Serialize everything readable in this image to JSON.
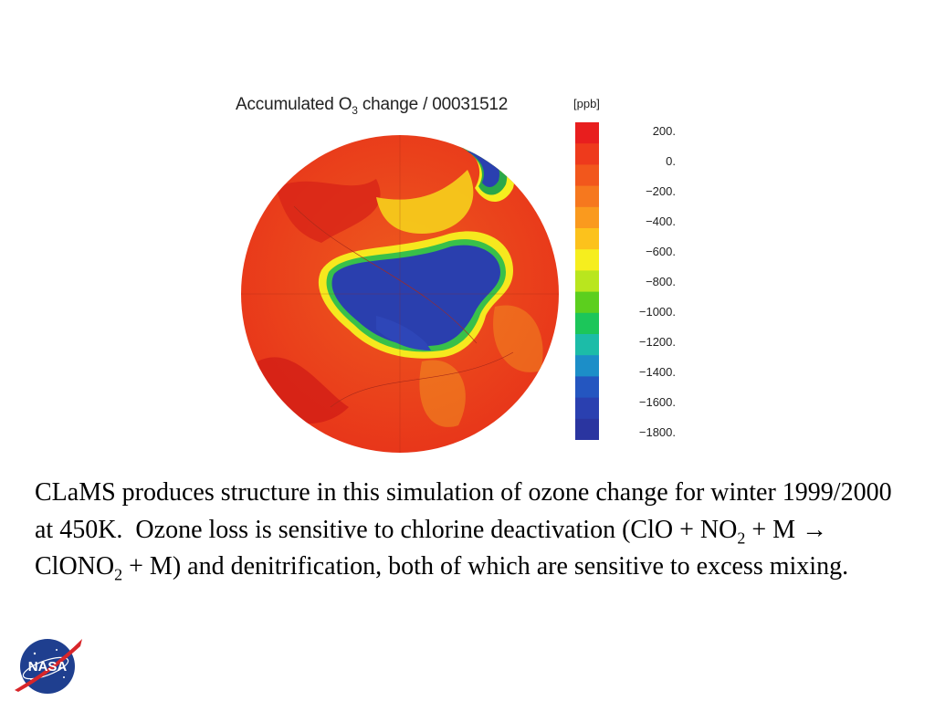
{
  "figure": {
    "title_main": "Accumulated O",
    "title_sub": "3",
    "title_rest": " change / 00031512",
    "units": "[ppb]",
    "colorbar_ticks": [
      "200.",
      "0.",
      "−200.",
      "−400.",
      "−600.",
      "−800.",
      "−1000.",
      "−1200.",
      "−1400.",
      "−1600.",
      "−1800."
    ],
    "colorbar_colors": [
      "#e81e1e",
      "#ee3a1c",
      "#f2571c",
      "#f6781e",
      "#fa9a1e",
      "#fcc21c",
      "#f6ee1e",
      "#b9e61e",
      "#5ccf1e",
      "#1cc65a",
      "#1cbca8",
      "#1c8ec8",
      "#2456c0",
      "#2a40b0",
      "#2a35a0"
    ]
  },
  "caption": {
    "part1": "CLaMS produces structure in this simulation of ozone change for winter 1999/2000 at 450K.  Ozone loss is sensitive to chlorine deactivation (ClO + NO",
    "sub1": "2",
    "part2": " + M →  ClONO",
    "sub2": "2",
    "part3": " + M) and denitrification, both of which are sensitive to excess mixing."
  },
  "logo": {
    "text": "NASA",
    "icon": "nasa-meatball-icon"
  }
}
